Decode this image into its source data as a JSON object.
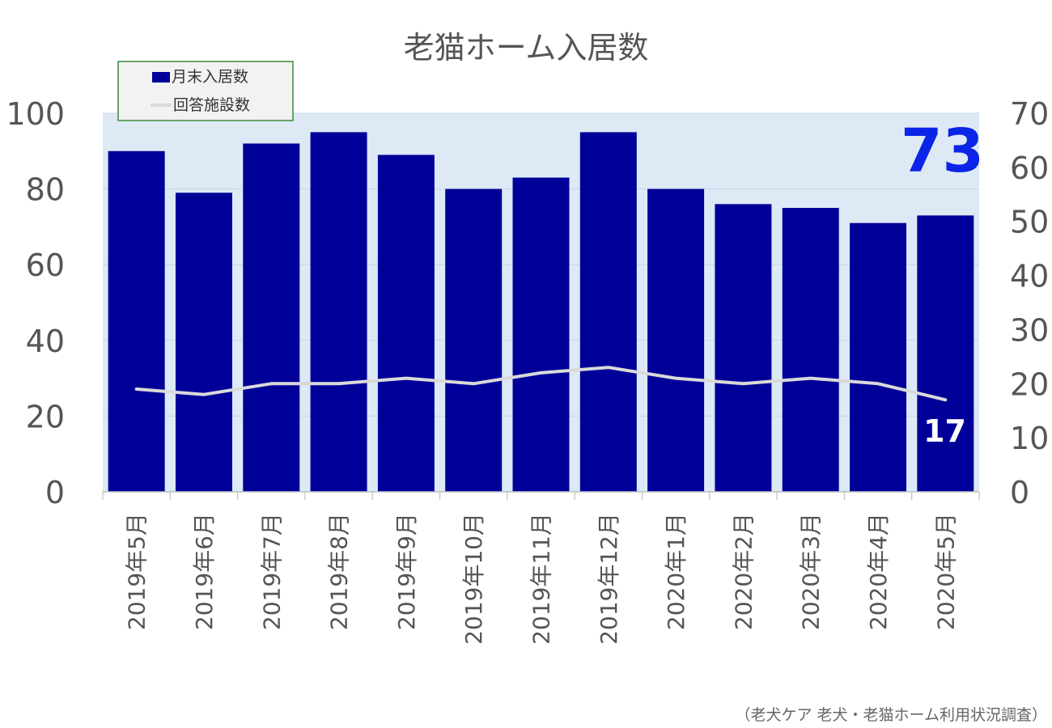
{
  "chart_data": {
    "type": "bar",
    "title": "老猫ホーム入居数",
    "categories": [
      "2019年5月",
      "2019年6月",
      "2019年7月",
      "2019年8月",
      "2019年9月",
      "2019年10月",
      "2019年11月",
      "2019年12月",
      "2020年1月",
      "2020年2月",
      "2020年3月",
      "2020年4月",
      "2020年5月"
    ],
    "series": [
      {
        "name": "月末入居数",
        "type": "bar",
        "axis": "left",
        "color": "#000099",
        "values": [
          90,
          79,
          92,
          95,
          89,
          80,
          83,
          95,
          80,
          76,
          75,
          71,
          73
        ]
      },
      {
        "name": "回答施設数",
        "type": "line",
        "axis": "right",
        "color": "#d9d9d9",
        "values": [
          19,
          18,
          20,
          20,
          21,
          20,
          22,
          23,
          21,
          20,
          21,
          20,
          17
        ]
      }
    ],
    "y_left": {
      "min": 0,
      "max": 100,
      "ticks": [
        "0",
        "20",
        "40",
        "60",
        "80",
        "100"
      ]
    },
    "y_right": {
      "min": 0,
      "max": 70,
      "ticks": [
        "0",
        "10",
        "20",
        "30",
        "40",
        "50",
        "60",
        "70"
      ]
    },
    "callouts": {
      "bar_last": "73",
      "line_last": "17"
    },
    "legend_position": "top-left",
    "grid": true,
    "plot_background": "#dde9f5",
    "callout_bar_color": "#0a24e8",
    "callout_line_color": "#ffffff",
    "source": "（老犬ケア 老犬・老猫ホーム利用状況調査）"
  }
}
